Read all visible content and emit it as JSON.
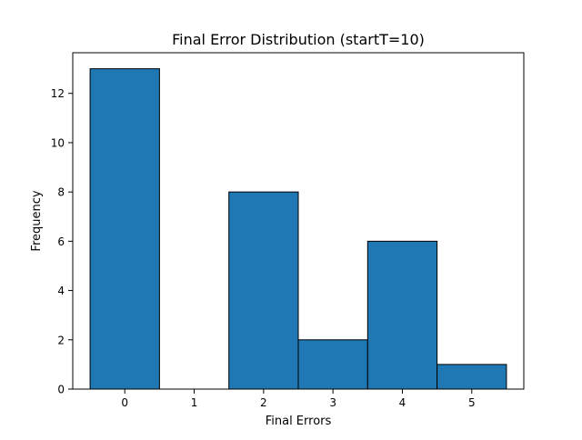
{
  "chart_data": {
    "type": "bar",
    "title": "Final Error Distribution (startT=10)",
    "xlabel": "Final Errors",
    "ylabel": "Frequency",
    "categories": [
      0,
      1,
      2,
      3,
      4,
      5
    ],
    "values": [
      13,
      0,
      8,
      2,
      6,
      1
    ],
    "bin_width": 1,
    "xlim": [
      -0.75,
      5.75
    ],
    "ylim": [
      0,
      13.65
    ],
    "xticks": [
      0,
      1,
      2,
      3,
      4,
      5
    ],
    "yticks": [
      0,
      2,
      4,
      6,
      8,
      10,
      12
    ],
    "grid": false,
    "bar_color": "#1f77b4",
    "edge_color": "#000000"
  }
}
